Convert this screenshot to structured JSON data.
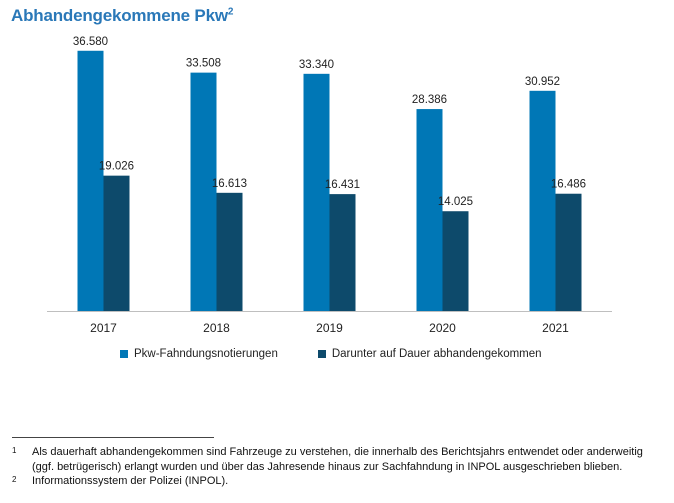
{
  "title": {
    "text": "Abhandengekommene Pkw",
    "sup": "2"
  },
  "colors": {
    "primary": "#0077b6",
    "secondary": "#0d4a6b",
    "title": "#2a78b8"
  },
  "chart_data": {
    "type": "bar",
    "categories": [
      "2017",
      "2018",
      "2019",
      "2020",
      "2021"
    ],
    "series": [
      {
        "name": "Pkw-Fahndungsnotierungen",
        "values": [
          36580,
          33508,
          33340,
          28386,
          30952
        ],
        "labels": [
          "36.580",
          "33.508",
          "33.340",
          "28.386",
          "30.952"
        ]
      },
      {
        "name": "Darunter auf Dauer abhandengekommen",
        "values": [
          19026,
          16613,
          16431,
          14025,
          16486
        ],
        "labels": [
          "19.026",
          "16.613",
          "16.431",
          "14.025",
          "16.486"
        ]
      }
    ],
    "ylim": [
      0,
      39500
    ],
    "grid": false,
    "legend": "bottom"
  },
  "legend": {
    "primary_label": "Pkw-Fahndungsnotierungen",
    "secondary_label": "Darunter auf Dauer abhandengekommen"
  },
  "footnotes": [
    {
      "mark": "1",
      "text": "Als dauerhaft abhandengekommen sind Fahrzeuge zu verstehen, die innerhalb des Berichtsjahrs entwendet oder anderweitig (ggf. betrügerisch) erlangt wurden und über das Jahresende hinaus zur Sachfahndung in INPOL ausgeschrieben blieben."
    },
    {
      "mark": "2",
      "text": "Informationssystem der Polizei (INPOL)."
    }
  ]
}
